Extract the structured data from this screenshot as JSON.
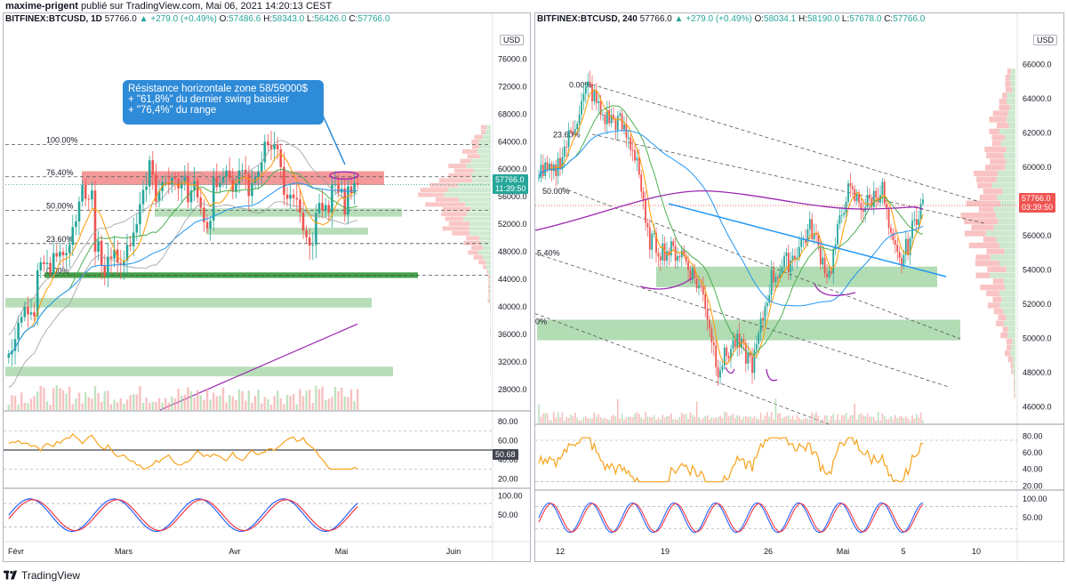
{
  "header": {
    "author": "maxime-prigent",
    "published": "publié sur TradingView.com, Mai 06, 2021 14:20:13 CEST"
  },
  "colors": {
    "up": "#26a69a",
    "down": "#ef5350",
    "green_zone": "#a5d6a7",
    "strong_green": "#43a047",
    "red_zone": "#ef9a9a",
    "purple": "#9c27b0",
    "blue": "#2196f3",
    "rsi": "#f7a21b",
    "stoch_k": "#2962ff",
    "stoch_d": "#f23645",
    "callout": "#2e8bd8"
  },
  "left_chart": {
    "symbol": "BITFINEX:BTCUSD, 1D",
    "last": "57766.0",
    "change": "▲ +279.0 (+0.49%)",
    "o_label": "O:",
    "o": "57486.6",
    "h_label": "H:",
    "h": "58343.0",
    "l_label": "L:",
    "l": "56426.0",
    "c_label": "C:",
    "c": "57766.0",
    "currency": "USD",
    "price_tag": "57766.0",
    "countdown": "11:39:50",
    "rsi_tag": "50.68",
    "callout": {
      "line1": "Résistance horizontale zone 58/59000$",
      "line2": "+ \"61,8%\" du dernier swing baissier",
      "line3": "+ \"76,4%\" du range"
    }
  },
  "right_chart": {
    "symbol": "BITFINEX:BTCUSD, 240",
    "last": "57766.0",
    "change": "▲ +279.0 (+0.49%)",
    "o_label": "O:",
    "o": "58034.1",
    "h_label": "H:",
    "h": "58190.0",
    "l_label": "L:",
    "l": "57678.0",
    "c_label": "C:",
    "c": "57766.0",
    "currency": "USD",
    "price_tag": "57766.0",
    "countdown": "03:39:50"
  },
  "footer": {
    "brand": "TradingView"
  },
  "chart_data": [
    {
      "type": "candlestick",
      "symbol": "BITFINEX:BTCUSD",
      "timeframe": "1D",
      "price_axis": {
        "ticks": [
          76000,
          72000,
          68000,
          64000,
          60000,
          56000,
          52000,
          48000,
          44000,
          40000,
          36000,
          32000,
          28000
        ],
        "range": [
          25000,
          78000
        ]
      },
      "x_labels": [
        "Févr",
        "Mars",
        "Avr",
        "Mai",
        "Juin"
      ],
      "fib_levels": [
        {
          "label": "100.00%",
          "value": 63600
        },
        {
          "label": "76.40%",
          "value": 58900
        },
        {
          "label": "50.00%",
          "value": 54000
        },
        {
          "label": "23.60%",
          "value": 49200
        },
        {
          "label": "0.00%",
          "value": 44600
        }
      ],
      "zones": [
        {
          "kind": "resistance",
          "from": 57700,
          "to": 59700
        },
        {
          "kind": "support",
          "from": 53100,
          "to": 54300
        },
        {
          "kind": "support",
          "from": 50500,
          "to": 51500
        },
        {
          "kind": "support-strong",
          "from": 44200,
          "to": 45000
        },
        {
          "kind": "support",
          "from": 39900,
          "to": 41300
        },
        {
          "kind": "support",
          "from": 29900,
          "to": 31300
        }
      ],
      "closes": [
        33100,
        33600,
        35300,
        37700,
        38500,
        40000,
        38900,
        39200,
        38600,
        45300,
        46500,
        46200,
        46400,
        44900,
        47800,
        47300,
        48000,
        47500,
        47800,
        49000,
        51600,
        52400,
        55300,
        57700,
        55700,
        55600,
        56900,
        48000,
        49600,
        46000,
        44500,
        47300,
        47000,
        48300,
        46400,
        46100,
        46700,
        49000,
        48800,
        50800,
        52000,
        54900,
        57000,
        57500,
        61300,
        59200,
        55300,
        56800,
        58100,
        58100,
        57800,
        58800,
        58600,
        57200,
        58100,
        59000,
        55200,
        56900,
        58300,
        55900,
        54400,
        52300,
        51400,
        52500,
        58800,
        57400,
        58000,
        58900,
        59800,
        58700,
        56700,
        57900,
        59800,
        59900,
        59300,
        56100,
        58000,
        58800,
        59700,
        61000,
        64000,
        63500,
        62900,
        63600,
        62900,
        60300,
        56300,
        55700,
        56300,
        55800,
        55600,
        53700,
        51100,
        50100,
        48900,
        49000,
        53600,
        55100,
        54000,
        54800,
        53700,
        57800,
        57800,
        56600,
        57200,
        53400,
        57500,
        56500,
        58000,
        57766
      ],
      "rsi": {
        "ticks": [
          80,
          60,
          40,
          20
        ],
        "last": 50.68
      },
      "stoch": {
        "ticks": [
          100,
          50
        ]
      }
    },
    {
      "type": "candlestick",
      "symbol": "BITFINEX:BTCUSD",
      "timeframe": "240",
      "price_axis": {
        "ticks": [
          66000,
          64000,
          62000,
          60000,
          58000,
          56000,
          54000,
          52000,
          50000,
          48000,
          46000
        ],
        "range": [
          45000,
          66800
        ]
      },
      "x_labels": [
        "12",
        "19",
        "26",
        "Mai",
        "5",
        "10"
      ],
      "fib_levels": [
        {
          "label": "0.00%",
          "value": 64800
        },
        {
          "label": "23.60%",
          "value": 61900
        },
        {
          "label": "50.00%",
          "value": 58600
        },
        {
          "label": "5.40%",
          "value": 55000
        },
        {
          "label": "0%",
          "value": 51000
        }
      ],
      "zones": [
        {
          "kind": "support",
          "from": 53000,
          "to": 54200
        },
        {
          "kind": "support",
          "from": 49900,
          "to": 51100
        }
      ],
      "rsi": {
        "ticks": [
          80,
          60,
          40,
          20
        ]
      },
      "stoch": {
        "ticks": [
          100,
          50
        ]
      }
    }
  ]
}
